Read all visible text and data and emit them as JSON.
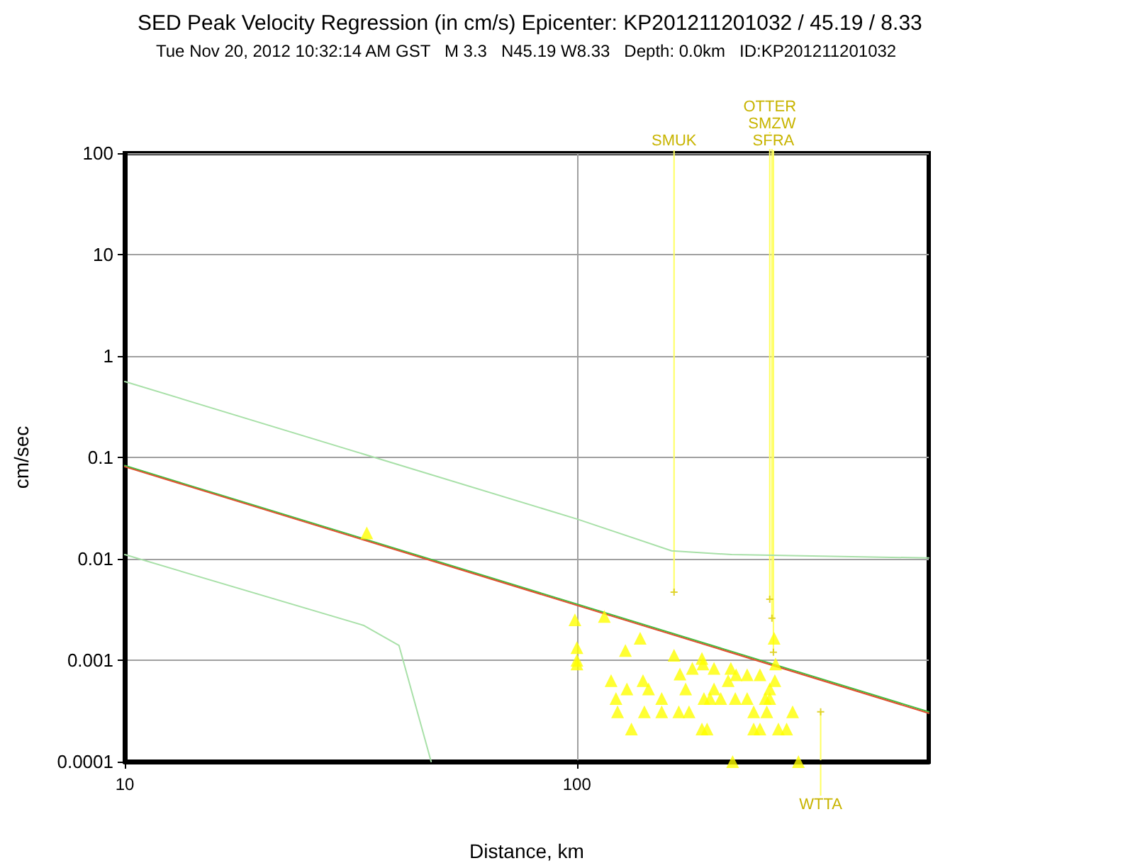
{
  "chart_data": {
    "type": "scatter",
    "title": "SED Peak Velocity Regression (in cm/s) Epicenter: KP201211201032 / 45.19 / 8.33",
    "subtitle": "Tue Nov 20, 2012 10:32:14 AM GST   M 3.3   N45.19 W8.33   Depth: 0.0km   ID:KP201211201032",
    "xlabel": "Distance, km",
    "ylabel": "cm/sec",
    "log": "xy",
    "grid": true,
    "marker": "triangle",
    "xlim": [
      10,
      600
    ],
    "xticks": [
      10,
      100
    ],
    "ylim": [
      0.0001,
      100
    ],
    "yticks": [
      0.0001,
      0.001,
      0.01,
      0.1,
      1,
      10,
      100
    ],
    "series": [
      {
        "type": "line",
        "color": "#a8e0a8",
        "marker": "none",
        "x": [
          10,
          100,
          162,
          220,
          600
        ],
        "values": [
          0.56,
          0.0247,
          0.012,
          0.011,
          0.0102
        ]
      },
      {
        "type": "line",
        "color": "#a8e0a8",
        "marker": "none",
        "x": [
          10,
          33.8,
          40.4,
          47.6
        ],
        "values": [
          0.011,
          0.0022,
          0.0014,
          0.0001
        ]
      },
      {
        "type": "line",
        "color": "#40c040",
        "marker": "none",
        "x": [
          10,
          600
        ],
        "values": [
          0.083,
          0.00031
        ]
      },
      {
        "type": "line",
        "color": "#e05030",
        "marker": "none",
        "x": [
          10,
          600
        ],
        "values": [
          0.081,
          0.0003
        ]
      },
      {
        "color": "#d8c800",
        "marker": "cross",
        "x": [
          164,
          267,
          270,
          272,
          346
        ],
        "values": [
          0.0047,
          0.004,
          0.0026,
          0.0012,
          0.00031
        ]
      },
      {
        "type": "scatter",
        "color": "#ffff00",
        "x": [
          99,
          115,
          100,
          100,
          100,
          138,
          128,
          164,
          189,
          190,
          119,
          140,
          169,
          180,
          201,
          219,
          225,
          238,
          254,
          273,
          275,
          216,
          274,
          129,
          144,
          174,
          201,
          267,
          122,
          154,
          191,
          197,
          208,
          224,
          238,
          261,
          267,
          123,
          141,
          154,
          168,
          177,
          246,
          263,
          300,
          132,
          189,
          194,
          246,
          254,
          279,
          291,
          221,
          309,
          34.3
        ],
        "values": [
          0.0025,
          0.0027,
          0.00133,
          0.001,
          0.00092,
          0.00165,
          0.00125,
          0.00112,
          0.00104,
          0.00092,
          0.00063,
          0.00063,
          0.00073,
          0.00083,
          0.00083,
          0.00083,
          0.00072,
          0.00072,
          0.00072,
          0.00165,
          0.00092,
          0.00063,
          0.00063,
          0.00052,
          0.00052,
          0.00052,
          0.00052,
          0.00052,
          0.00042,
          0.00042,
          0.00042,
          0.00042,
          0.00042,
          0.00042,
          0.00042,
          0.00042,
          0.00042,
          0.00031,
          0.00031,
          0.00031,
          0.00031,
          0.00031,
          0.00031,
          0.00031,
          0.00031,
          0.00021,
          0.00021,
          0.00021,
          0.00021,
          0.00021,
          0.00021,
          0.00021,
          0.0001,
          0.0001,
          0.018
        ]
      }
    ],
    "annotations": [
      {
        "text": "SMUK",
        "x": 164,
        "y": 0.0047
      },
      {
        "text": "OTTER",
        "x": 267,
        "y": 0.004
      },
      {
        "text": "SMZW",
        "x": 270,
        "y": 0.0026
      },
      {
        "text": "SFRA",
        "x": 272,
        "y": 0.0012
      },
      {
        "text": "WTTA",
        "x": 346,
        "y": 0.00031
      }
    ]
  }
}
